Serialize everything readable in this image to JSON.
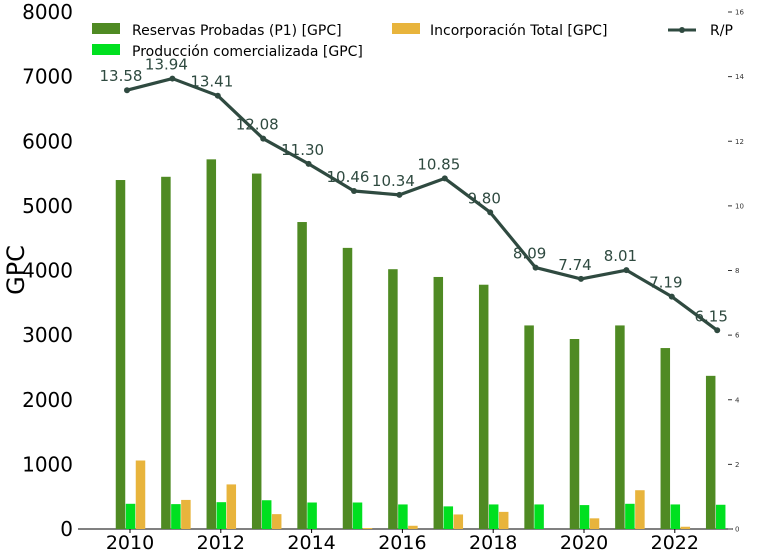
{
  "chart_data": {
    "type": "bar",
    "ylabel": "GPC",
    "ylim": [
      0,
      8000
    ],
    "y_ticks": [
      "0",
      "1000",
      "2000",
      "3000",
      "4000",
      "5000",
      "6000",
      "7000",
      "8000"
    ],
    "y2lim": [
      0,
      16
    ],
    "y2_ticks": [
      "0",
      "2",
      "4",
      "6",
      "8",
      "10",
      "12",
      "14",
      "16"
    ],
    "x_tick_labels": [
      "2010",
      "2012",
      "2014",
      "2016",
      "2018",
      "2020",
      "2022"
    ],
    "categories": [
      2010,
      2011,
      2012,
      2013,
      2014,
      2015,
      2016,
      2017,
      2018,
      2019,
      2020,
      2021,
      2022,
      2023
    ],
    "legend_placement": "top",
    "series": [
      {
        "name": "Reservas Probadas (P1) [GPC]",
        "color": "#4f8a23",
        "values": [
          5400,
          5450,
          5720,
          5500,
          4750,
          4350,
          4020,
          3900,
          3780,
          3150,
          2940,
          3150,
          2800,
          2370
        ]
      },
      {
        "name": "Producción comercializada [GPC]",
        "color": "#00e020",
        "values": [
          390,
          385,
          415,
          445,
          410,
          410,
          380,
          350,
          380,
          380,
          370,
          390,
          380,
          375
        ]
      },
      {
        "name": "Incorporación Total [GPC]",
        "color": "#e8b43c",
        "values": [
          1060,
          450,
          690,
          230,
          0,
          15,
          50,
          225,
          265,
          0,
          165,
          600,
          35,
          0
        ]
      },
      {
        "name": "R/P",
        "type": "line",
        "axis": "secondary",
        "color": "#2f4a40",
        "values": [
          13.58,
          13.94,
          13.41,
          12.08,
          11.3,
          10.46,
          10.34,
          10.85,
          9.8,
          8.09,
          7.74,
          8.01,
          7.19,
          6.15
        ],
        "labels": [
          "13.58",
          "13.94",
          "13.41",
          "12.08",
          "11.30",
          "10.46",
          "10.34",
          "10.85",
          "9.80",
          "8.09",
          "7.74",
          "8.01",
          "7.19",
          "6.15"
        ]
      }
    ]
  }
}
